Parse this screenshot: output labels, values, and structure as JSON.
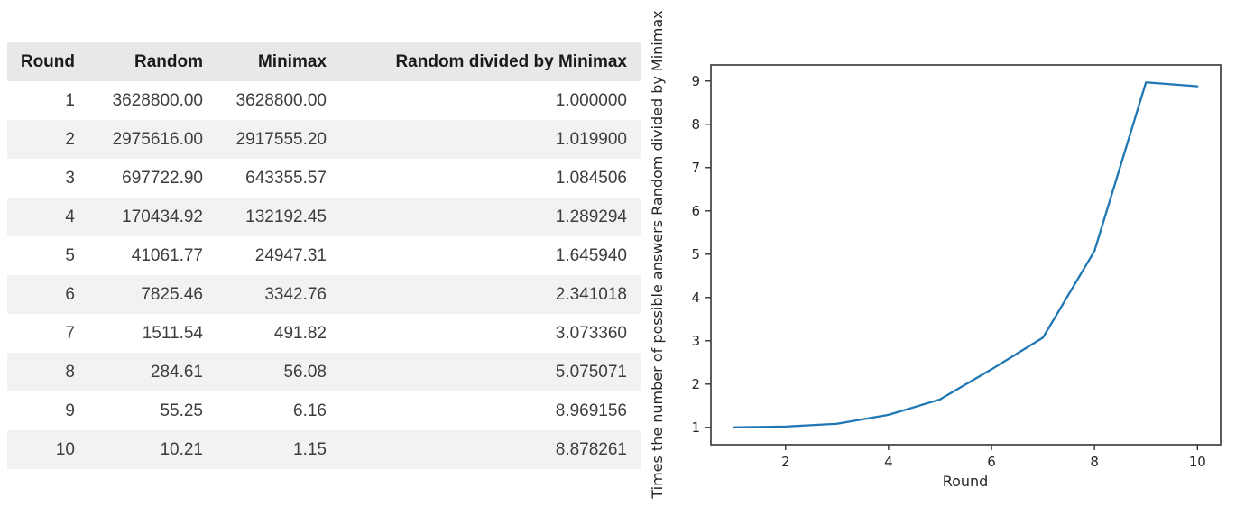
{
  "table": {
    "columns": [
      "Round",
      "Random",
      "Minimax",
      "Random divided by Minimax"
    ],
    "rows": [
      [
        "1",
        "3628800.00",
        "3628800.00",
        "1.000000"
      ],
      [
        "2",
        "2975616.00",
        "2917555.20",
        "1.019900"
      ],
      [
        "3",
        "697722.90",
        "643355.57",
        "1.084506"
      ],
      [
        "4",
        "170434.92",
        "132192.45",
        "1.289294"
      ],
      [
        "5",
        "41061.77",
        "24947.31",
        "1.645940"
      ],
      [
        "6",
        "7825.46",
        "3342.76",
        "2.341018"
      ],
      [
        "7",
        "1511.54",
        "491.82",
        "3.073360"
      ],
      [
        "8",
        "284.61",
        "56.08",
        "5.075071"
      ],
      [
        "9",
        "55.25",
        "6.16",
        "8.969156"
      ],
      [
        "10",
        "10.21",
        "1.15",
        "8.878261"
      ]
    ]
  },
  "chart_data": {
    "type": "line",
    "title": "",
    "xlabel": "Round",
    "ylabel": "Times the number of possible answers Random divided by Minimax",
    "x": [
      1,
      2,
      3,
      4,
      5,
      6,
      7,
      8,
      9,
      10
    ],
    "series": [
      {
        "name": "Random divided by Minimax",
        "values": [
          1.0,
          1.0199,
          1.084506,
          1.289294,
          1.64594,
          2.341018,
          3.07336,
          5.075071,
          8.969156,
          8.878261
        ],
        "color": "#1f77b4"
      }
    ],
    "xlim": [
      0.55,
      10.45
    ],
    "ylim": [
      0.6,
      9.37
    ],
    "xticks": [
      2,
      4,
      6,
      8,
      10
    ],
    "yticks": [
      1,
      2,
      3,
      4,
      5,
      6,
      7,
      8,
      9
    ],
    "grid": false,
    "legend": "none"
  },
  "colors": {
    "line": "#1f77b4",
    "axis": "#333333",
    "tick_label": "#262626",
    "table_header_bg": "#e8e8e8",
    "table_stripe_bg": "#f2f2f2"
  }
}
